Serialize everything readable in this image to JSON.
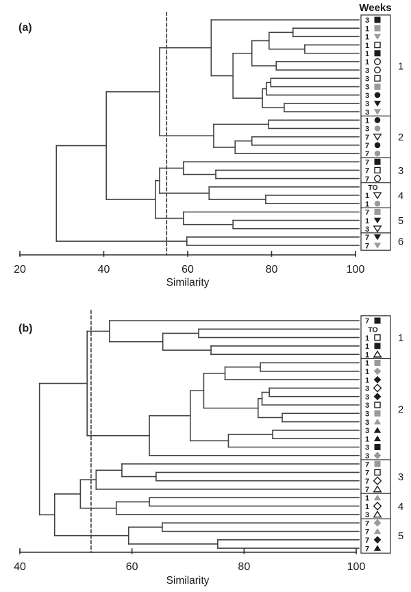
{
  "figure": {
    "weeks_header": "Weeks",
    "similarity_label": "Similarity"
  },
  "colors": {
    "symbol_black": "#1c1c1c",
    "symbol_gray": "#9a9a9a",
    "branch_line": "#414141",
    "axis_line": "#2c2c2c"
  },
  "chart_data": [
    {
      "type": "dendrogram",
      "panel_label": "(a)",
      "xlabel": "Similarity",
      "axis": {
        "min": 20,
        "max": 100,
        "ticks": [
          20,
          40,
          60,
          80,
          100
        ]
      },
      "cut_line": 55,
      "legend_title": "Weeks",
      "leaves": [
        {
          "week": "3",
          "shape": "square",
          "fill": "black"
        },
        {
          "week": "1",
          "shape": "square",
          "fill": "gray"
        },
        {
          "week": "1",
          "shape": "tri-down",
          "fill": "gray"
        },
        {
          "week": "1",
          "shape": "square",
          "fill": "open"
        },
        {
          "week": "1",
          "shape": "square",
          "fill": "black"
        },
        {
          "week": "1",
          "shape": "circle",
          "fill": "open"
        },
        {
          "week": "3",
          "shape": "circle",
          "fill": "open"
        },
        {
          "week": "3",
          "shape": "square",
          "fill": "open"
        },
        {
          "week": "3",
          "shape": "square",
          "fill": "gray"
        },
        {
          "week": "3",
          "shape": "circle",
          "fill": "black"
        },
        {
          "week": "3",
          "shape": "tri-down",
          "fill": "black"
        },
        {
          "week": "3",
          "shape": "tri-down",
          "fill": "gray"
        },
        {
          "week": "1",
          "shape": "circle",
          "fill": "black"
        },
        {
          "week": "3",
          "shape": "circle",
          "fill": "gray"
        },
        {
          "week": "7",
          "shape": "tri-down",
          "fill": "open"
        },
        {
          "week": "7",
          "shape": "circle",
          "fill": "black"
        },
        {
          "week": "7",
          "shape": "circle",
          "fill": "gray"
        },
        {
          "week": "7",
          "shape": "square",
          "fill": "black"
        },
        {
          "week": "7",
          "shape": "square",
          "fill": "open"
        },
        {
          "week": "7",
          "shape": "circle",
          "fill": "open"
        },
        {
          "week": "TO",
          "shape": "none",
          "fill": "none"
        },
        {
          "week": "1",
          "shape": "tri-down",
          "fill": "open"
        },
        {
          "week": "1",
          "shape": "circle",
          "fill": "gray"
        },
        {
          "week": "7",
          "shape": "square",
          "fill": "gray"
        },
        {
          "week": "1",
          "shape": "tri-down",
          "fill": "black"
        },
        {
          "week": "3",
          "shape": "tri-down",
          "fill": "open"
        },
        {
          "week": "7",
          "shape": "tri-down",
          "fill": "black"
        },
        {
          "week": "7",
          "shape": "tri-down",
          "fill": "gray"
        }
      ],
      "clusters": [
        {
          "label": "1",
          "size": 12
        },
        {
          "label": "2",
          "size": 5
        },
        {
          "label": "3",
          "size": 3
        },
        {
          "label": "4",
          "size": 3
        },
        {
          "label": "5",
          "size": 3
        },
        {
          "label": "6",
          "size": 2
        }
      ],
      "tree": [
        28.7,
        [
          40.6,
          [
            53.3,
            [
              65.6,
              0,
              [
                70.8,
                [
                  75.3,
                  [
                    79.4,
                    [
                      85.1,
                      1,
                      2
                    ],
                    [
                      87.9,
                      3,
                      4
                    ]
                  ],
                  [
                    81.1,
                    5,
                    6
                  ]
                ],
                [
                  77.8,
                  [
                    78.8,
                    [
                      79.8,
                      7,
                      8
                    ],
                    9
                  ],
                  [
                    83.0,
                    10,
                    11
                  ]
                ]
              ]
            ],
            [
              66.2,
              [
                79.3,
                12,
                13
              ],
              [
                71.3,
                [
                  75.3,
                  14,
                  15
                ],
                16
              ]
            ]
          ],
          [
            52.3,
            [
              53.3,
              [
                59.0,
                17,
                [
                  66.7,
                  18,
                  19
                ]
              ],
              [
                65.1,
                20,
                [
                  78.6,
                  21,
                  22
                ]
              ]
            ],
            [
              59.0,
              23,
              [
                70.8,
                24,
                25
              ]
            ]
          ]
        ],
        [
          59.8,
          26,
          27
        ]
      ]
    },
    {
      "type": "dendrogram",
      "panel_label": "(b)",
      "xlabel": "Similarity",
      "axis": {
        "min": 40,
        "max": 100,
        "ticks": [
          40,
          60,
          80,
          100
        ]
      },
      "cut_line": 52.7,
      "leaves": [
        {
          "week": "7",
          "shape": "square",
          "fill": "black"
        },
        {
          "week": "TO",
          "shape": "none",
          "fill": "none"
        },
        {
          "week": "1",
          "shape": "square",
          "fill": "open"
        },
        {
          "week": "1",
          "shape": "square",
          "fill": "black"
        },
        {
          "week": "1",
          "shape": "tri-up",
          "fill": "open"
        },
        {
          "week": "1",
          "shape": "square",
          "fill": "gray"
        },
        {
          "week": "1",
          "shape": "diamond",
          "fill": "gray"
        },
        {
          "week": "1",
          "shape": "diamond",
          "fill": "black"
        },
        {
          "week": "3",
          "shape": "diamond",
          "fill": "open"
        },
        {
          "week": "3",
          "shape": "diamond",
          "fill": "black"
        },
        {
          "week": "3",
          "shape": "square",
          "fill": "open"
        },
        {
          "week": "3",
          "shape": "square",
          "fill": "gray"
        },
        {
          "week": "3",
          "shape": "tri-up",
          "fill": "gray"
        },
        {
          "week": "3",
          "shape": "tri-up",
          "fill": "black"
        },
        {
          "week": "1",
          "shape": "tri-up",
          "fill": "black"
        },
        {
          "week": "3",
          "shape": "square",
          "fill": "black"
        },
        {
          "week": "3",
          "shape": "diamond",
          "fill": "gray"
        },
        {
          "week": "7",
          "shape": "square",
          "fill": "gray"
        },
        {
          "week": "7",
          "shape": "square",
          "fill": "open"
        },
        {
          "week": "7",
          "shape": "diamond",
          "fill": "open"
        },
        {
          "week": "7",
          "shape": "tri-up",
          "fill": "open"
        },
        {
          "week": "1",
          "shape": "tri-up",
          "fill": "gray"
        },
        {
          "week": "1",
          "shape": "diamond",
          "fill": "open"
        },
        {
          "week": "3",
          "shape": "tri-up",
          "fill": "open"
        },
        {
          "week": "7",
          "shape": "diamond",
          "fill": "gray"
        },
        {
          "week": "7",
          "shape": "tri-up",
          "fill": "gray"
        },
        {
          "week": "7",
          "shape": "diamond",
          "fill": "black"
        },
        {
          "week": "7",
          "shape": "tri-up",
          "fill": "black"
        }
      ],
      "clusters": [
        {
          "label": "1",
          "size": 5
        },
        {
          "label": "2",
          "size": 12
        },
        {
          "label": "3",
          "size": 4
        },
        {
          "label": "4",
          "size": 3
        },
        {
          "label": "5",
          "size": 4
        }
      ],
      "tree": [
        43.5,
        [
          52.0,
          [
            56.0,
            0,
            [
              65.5,
              [
                71.9,
                1,
                2
              ],
              [
                74.1,
                3,
                4
              ]
            ]
          ],
          [
            63.1,
            [
              70.4,
              [
                72.8,
                [
                  76.6,
                  [
                    82.9,
                    5,
                    6
                  ],
                  7
                ],
                [
                  82.5,
                  [
                    83.2,
                    [
                      84.5,
                      8,
                      9
                    ],
                    10
                  ],
                  [
                    86.8,
                    11,
                    12
                  ]
                ]
              ],
              [
                77.2,
                [
                  85.1,
                  13,
                  14
                ],
                15
              ]
            ],
            16
          ]
        ],
        [
          46.2,
          [
            50.8,
            [
              53.6,
              [
                58.2,
                17,
                [
                  64.3,
                  18,
                  19
                ]
              ],
              20
            ],
            [
              57.2,
              [
                63.1,
                21,
                22
              ],
              23
            ]
          ],
          [
            59.4,
            [
              65.4,
              24,
              25
            ],
            [
              75.3,
              26,
              27
            ]
          ]
        ]
      ]
    }
  ]
}
